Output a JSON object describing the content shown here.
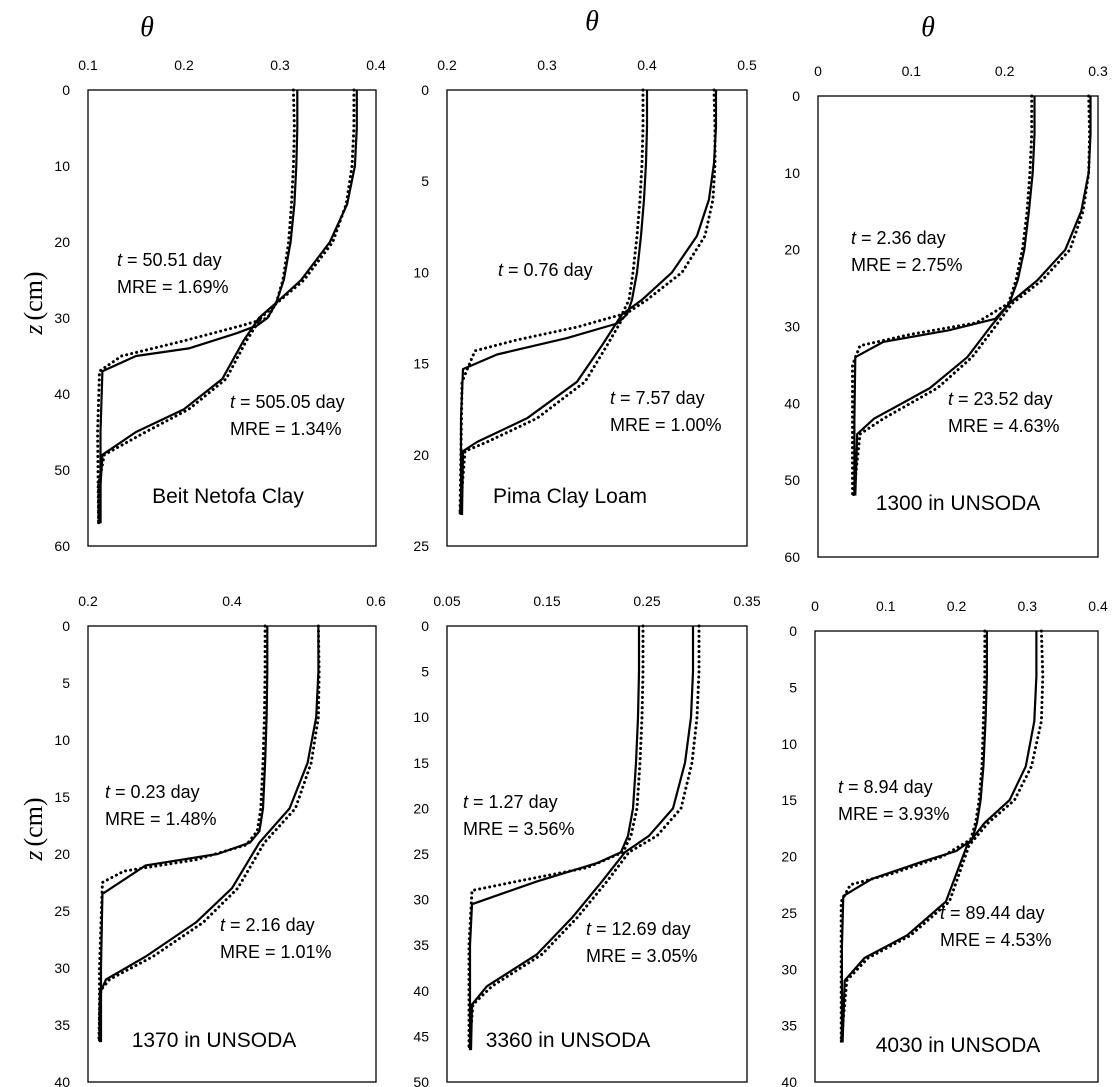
{
  "figure": {
    "x_symbol": "θ",
    "y_symbol": "z",
    "y_unit": "(cm)"
  },
  "chart_data": [
    {
      "type": "line",
      "soil": "Beit Netofa Clay",
      "xticks": [
        "0.1",
        "0.2",
        "0.3",
        "0.4"
      ],
      "yticks": [
        "0",
        "10",
        "20",
        "30",
        "40",
        "50",
        "60"
      ],
      "xlim": [
        0.1,
        0.4
      ],
      "ylim": [
        0,
        60
      ],
      "x_symbol_shown": true,
      "y_label_shown": true,
      "annotations": [
        {
          "t_label": "t",
          "t_text": " = 50.51 day",
          "mre": "MRE = 1.69%"
        },
        {
          "t_label": "t",
          "t_text": " = 505.05 day",
          "mre": "MRE = 1.34%"
        }
      ],
      "series": [
        {
          "style": "solid",
          "x": [
            0.318,
            0.318,
            0.317,
            0.315,
            0.311,
            0.304,
            0.296,
            0.287,
            0.276,
            0.255,
            0.205,
            0.15,
            0.115,
            0.113,
            0.113
          ],
          "y": [
            0,
            5,
            10,
            15,
            20,
            25,
            28,
            30,
            31,
            32,
            34,
            35,
            37,
            45,
            57
          ]
        },
        {
          "style": "dotted",
          "x": [
            0.314,
            0.315,
            0.314,
            0.312,
            0.309,
            0.303,
            0.296,
            0.287,
            0.26,
            0.2,
            0.135,
            0.112,
            0.11,
            0.111
          ],
          "y": [
            0,
            5,
            10,
            15,
            20,
            25,
            28,
            30,
            31,
            33,
            35,
            37,
            45,
            57
          ]
        },
        {
          "style": "solid",
          "x": [
            0.38,
            0.38,
            0.378,
            0.37,
            0.352,
            0.322,
            0.296,
            0.278,
            0.262,
            0.24,
            0.2,
            0.15,
            0.115,
            0.113,
            0.113
          ],
          "y": [
            0,
            5,
            10,
            15,
            20,
            25,
            28,
            30,
            33,
            38,
            42,
            45,
            48,
            52,
            57
          ]
        },
        {
          "style": "dotted",
          "x": [
            0.377,
            0.377,
            0.375,
            0.369,
            0.355,
            0.325,
            0.297,
            0.28,
            0.265,
            0.244,
            0.205,
            0.16,
            0.117,
            0.111,
            0.111
          ],
          "y": [
            0,
            5,
            10,
            15,
            20,
            25,
            28,
            30,
            33,
            38,
            42,
            45,
            48,
            52,
            57
          ]
        }
      ]
    },
    {
      "type": "line",
      "soil": "Pima Clay Loam",
      "xticks": [
        "0.2",
        "0.3",
        "0.4",
        "0.5"
      ],
      "yticks": [
        "0",
        "5",
        "10",
        "15",
        "20",
        "25"
      ],
      "xlim": [
        0.2,
        0.5
      ],
      "ylim": [
        0,
        25
      ],
      "x_symbol_shown": true,
      "y_label_shown": false,
      "annotations": [
        {
          "t_label": "t",
          "t_text": " = 0.76 day",
          "mre": ""
        },
        {
          "t_label": "t",
          "t_text": " = 7.57 day",
          "mre": "MRE = 1.00%"
        }
      ],
      "series": [
        {
          "style": "solid",
          "x": [
            0.4,
            0.4,
            0.399,
            0.397,
            0.394,
            0.39,
            0.385,
            0.38,
            0.37,
            0.32,
            0.25,
            0.216,
            0.214,
            0.214
          ],
          "y": [
            0,
            2,
            4,
            6,
            8,
            10,
            11.5,
            12.3,
            12.8,
            13.6,
            14.5,
            15.3,
            18,
            23.3
          ]
        },
        {
          "style": "dotted",
          "x": [
            0.396,
            0.396,
            0.395,
            0.393,
            0.39,
            0.386,
            0.382,
            0.375,
            0.33,
            0.27,
            0.228,
            0.215,
            0.213
          ],
          "y": [
            0,
            2,
            4,
            6,
            8,
            10,
            11.5,
            12.3,
            13,
            13.7,
            14.3,
            16,
            23.3
          ]
        },
        {
          "style": "solid",
          "x": [
            0.469,
            0.469,
            0.467,
            0.462,
            0.45,
            0.425,
            0.395,
            0.375,
            0.355,
            0.33,
            0.28,
            0.23,
            0.216,
            0.215
          ],
          "y": [
            0,
            2,
            4,
            6,
            8,
            10,
            11.5,
            12.3,
            14,
            16,
            18,
            19.3,
            19.8,
            23.3
          ]
        },
        {
          "style": "dotted",
          "x": [
            0.467,
            0.468,
            0.468,
            0.466,
            0.458,
            0.435,
            0.4,
            0.378,
            0.36,
            0.338,
            0.29,
            0.24,
            0.218,
            0.213
          ],
          "y": [
            0,
            2,
            4,
            6,
            8,
            10,
            11.5,
            12.3,
            14,
            16,
            18,
            19.3,
            19.8,
            23.3
          ]
        }
      ]
    },
    {
      "type": "line",
      "soil": "1300 in UNSODA",
      "xticks": [
        "0",
        "0.1",
        "0.2",
        "0.3"
      ],
      "yticks": [
        "0",
        "10",
        "20",
        "30",
        "40",
        "50",
        "60"
      ],
      "xlim": [
        0,
        0.3
      ],
      "ylim": [
        0,
        60
      ],
      "x_symbol_shown": true,
      "y_label_shown": false,
      "annotations": [
        {
          "t_label": "t",
          "t_text": " = 2.36 day",
          "mre": "MRE = 2.75%"
        },
        {
          "t_label": "t",
          "t_text": " = 23.52 day",
          "mre": "MRE = 4.63%"
        }
      ],
      "series": [
        {
          "style": "solid",
          "x": [
            0.232,
            0.232,
            0.23,
            0.226,
            0.221,
            0.214,
            0.205,
            0.19,
            0.14,
            0.07,
            0.04,
            0.039,
            0.039
          ],
          "y": [
            0,
            5,
            10,
            15,
            20,
            24,
            27,
            29,
            30.5,
            32,
            34,
            42,
            52
          ]
        },
        {
          "style": "dotted",
          "x": [
            0.229,
            0.229,
            0.227,
            0.224,
            0.219,
            0.212,
            0.204,
            0.17,
            0.1,
            0.045,
            0.037,
            0.037
          ],
          "y": [
            0,
            5,
            10,
            15,
            20,
            24,
            27,
            29.5,
            31,
            32.5,
            35,
            52
          ]
        },
        {
          "style": "solid",
          "x": [
            0.292,
            0.292,
            0.29,
            0.282,
            0.265,
            0.235,
            0.205,
            0.185,
            0.16,
            0.12,
            0.06,
            0.042,
            0.04
          ],
          "y": [
            0,
            5,
            10,
            15,
            20,
            24,
            27,
            30,
            34,
            38,
            42,
            44,
            52
          ]
        },
        {
          "style": "dotted",
          "x": [
            0.29,
            0.291,
            0.29,
            0.284,
            0.27,
            0.24,
            0.208,
            0.19,
            0.165,
            0.128,
            0.07,
            0.045,
            0.038
          ],
          "y": [
            0,
            5,
            10,
            15,
            20,
            24,
            27,
            30,
            34,
            38,
            42,
            44,
            52
          ]
        }
      ]
    },
    {
      "type": "line",
      "soil": "1370 in UNSODA",
      "xticks": [
        "0.2",
        "0.4",
        "0.6"
      ],
      "yticks": [
        "0",
        "5",
        "10",
        "15",
        "20",
        "25",
        "30",
        "35",
        "40"
      ],
      "xlim": [
        0.2,
        0.6
      ],
      "ylim": [
        0,
        40
      ],
      "x_symbol_shown": false,
      "y_label_shown": true,
      "annotations": [
        {
          "t_label": "t",
          "t_text": " = 0.23 day",
          "mre": "MRE = 1.48%"
        },
        {
          "t_label": "t",
          "t_text": " = 2.16 day",
          "mre": "MRE = 1.01%"
        }
      ],
      "series": [
        {
          "style": "solid",
          "x": [
            0.449,
            0.449,
            0.448,
            0.446,
            0.443,
            0.438,
            0.425,
            0.38,
            0.28,
            0.22,
            0.218,
            0.218
          ],
          "y": [
            0,
            4,
            8,
            12,
            16,
            18,
            19,
            20,
            21,
            23.5,
            30,
            36.5
          ]
        },
        {
          "style": "dotted",
          "x": [
            0.446,
            0.446,
            0.445,
            0.443,
            0.44,
            0.435,
            0.42,
            0.35,
            0.25,
            0.22,
            0.216,
            0.216
          ],
          "y": [
            0,
            4,
            8,
            12,
            16,
            18,
            19.2,
            20.5,
            21.5,
            22.5,
            30,
            36.5
          ]
        },
        {
          "style": "solid",
          "x": [
            0.52,
            0.52,
            0.517,
            0.505,
            0.48,
            0.438,
            0.4,
            0.35,
            0.28,
            0.225,
            0.218,
            0.217
          ],
          "y": [
            0,
            4,
            8,
            12,
            16,
            19,
            23,
            26,
            29,
            31,
            32,
            36.5
          ]
        },
        {
          "style": "dotted",
          "x": [
            0.52,
            0.521,
            0.52,
            0.51,
            0.488,
            0.445,
            0.408,
            0.36,
            0.29,
            0.23,
            0.217,
            0.215
          ],
          "y": [
            0,
            4,
            8,
            12,
            16,
            19,
            23,
            26,
            29,
            31,
            32,
            36.5
          ]
        }
      ]
    },
    {
      "type": "line",
      "soil": "3360 in UNSODA",
      "xticks": [
        "0.05",
        "0.15",
        "0.25",
        "0.35"
      ],
      "yticks": [
        "0",
        "5",
        "10",
        "15",
        "20",
        "25",
        "30",
        "35",
        "40",
        "45",
        "50"
      ],
      "xlim": [
        0.05,
        0.35
      ],
      "ylim": [
        0,
        50
      ],
      "x_symbol_shown": false,
      "y_label_shown": false,
      "annotations": [
        {
          "t_label": "t",
          "t_text": " = 1.27 day",
          "mre": "MRE = 3.56%"
        },
        {
          "t_label": "t",
          "t_text": " = 12.69 day",
          "mre": "MRE = 3.05%"
        }
      ],
      "series": [
        {
          "style": "solid",
          "x": [
            0.242,
            0.242,
            0.241,
            0.239,
            0.236,
            0.231,
            0.224,
            0.2,
            0.14,
            0.075,
            0.073,
            0.073
          ],
          "y": [
            0,
            5,
            10,
            15,
            20,
            23,
            24.8,
            26,
            28,
            30.5,
            35,
            46.5
          ]
        },
        {
          "style": "dotted",
          "x": [
            0.246,
            0.246,
            0.245,
            0.243,
            0.24,
            0.234,
            0.226,
            0.19,
            0.12,
            0.075,
            0.072,
            0.072
          ],
          "y": [
            0,
            5,
            10,
            15,
            20,
            23,
            24.8,
            26.5,
            28,
            29,
            35,
            46.5
          ]
        },
        {
          "style": "solid",
          "x": [
            0.296,
            0.296,
            0.294,
            0.288,
            0.276,
            0.252,
            0.228,
            0.205,
            0.175,
            0.14,
            0.09,
            0.075,
            0.074
          ],
          "y": [
            0,
            5,
            10,
            15,
            20,
            23,
            24.8,
            28,
            32,
            36,
            39.5,
            41.5,
            46.5
          ]
        },
        {
          "style": "dotted",
          "x": [
            0.302,
            0.302,
            0.3,
            0.295,
            0.284,
            0.26,
            0.232,
            0.21,
            0.18,
            0.145,
            0.095,
            0.076,
            0.072
          ],
          "y": [
            0,
            5,
            10,
            15,
            20,
            23,
            24.8,
            28,
            32,
            36,
            39.5,
            41.5,
            46.5
          ]
        }
      ]
    },
    {
      "type": "line",
      "soil": "4030 in UNSODA",
      "xticks": [
        "0",
        "0.1",
        "0.2",
        "0.3",
        "0.4"
      ],
      "yticks": [
        "0",
        "5",
        "10",
        "15",
        "20",
        "25",
        "30",
        "35",
        "40"
      ],
      "xlim": [
        0,
        0.4
      ],
      "ylim": [
        0,
        40
      ],
      "x_symbol_shown": false,
      "y_label_shown": false,
      "annotations": [
        {
          "t_label": "t",
          "t_text": " = 8.94 day",
          "mre": "MRE = 3.93%"
        },
        {
          "t_label": "t",
          "t_text": " = 89.44 day",
          "mre": "MRE = 4.53%"
        }
      ],
      "series": [
        {
          "style": "solid",
          "x": [
            0.243,
            0.243,
            0.241,
            0.238,
            0.234,
            0.229,
            0.222,
            0.2,
            0.15,
            0.08,
            0.04,
            0.038,
            0.038
          ],
          "y": [
            0,
            4,
            8,
            12,
            15,
            17,
            18.5,
            19.5,
            20.5,
            22,
            23.5,
            28,
            36.5
          ]
        },
        {
          "style": "dotted",
          "x": [
            0.24,
            0.24,
            0.238,
            0.236,
            0.232,
            0.227,
            0.22,
            0.18,
            0.11,
            0.05,
            0.037,
            0.037
          ],
          "y": [
            0,
            4,
            8,
            12,
            15,
            17,
            18.5,
            20,
            21.5,
            22.5,
            24,
            36.5
          ]
        },
        {
          "style": "solid",
          "x": [
            0.313,
            0.313,
            0.31,
            0.298,
            0.275,
            0.24,
            0.215,
            0.185,
            0.13,
            0.07,
            0.042,
            0.039
          ],
          "y": [
            0,
            4,
            8,
            12,
            15,
            17,
            19,
            24,
            27,
            29,
            31,
            36.5
          ]
        },
        {
          "style": "dotted",
          "x": [
            0.32,
            0.322,
            0.32,
            0.306,
            0.282,
            0.245,
            0.218,
            0.19,
            0.135,
            0.075,
            0.045,
            0.037
          ],
          "y": [
            0,
            4,
            8,
            12,
            15,
            17,
            19,
            24,
            27,
            29,
            31,
            36.5
          ]
        }
      ]
    }
  ]
}
